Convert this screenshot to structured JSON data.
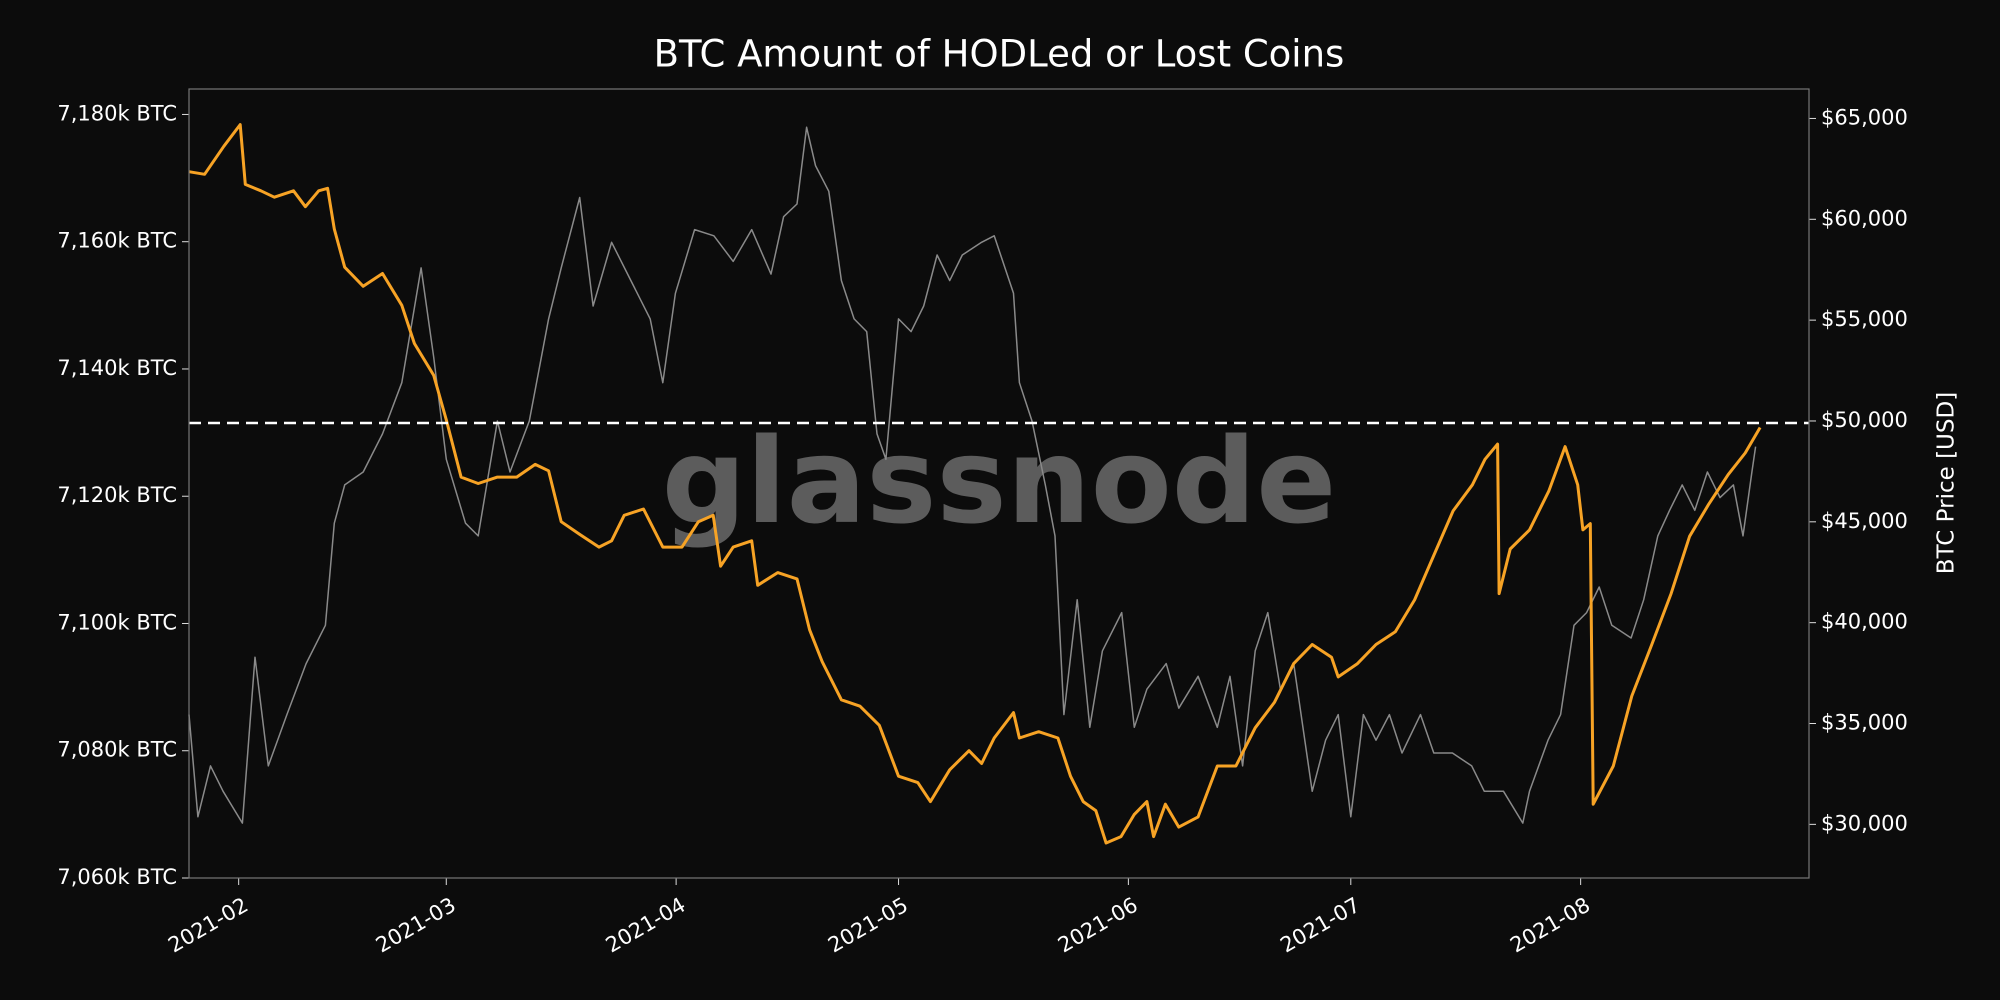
{
  "chart_data": {
    "type": "line",
    "title": "BTC Amount of HODLed or Lost Coins",
    "watermark": "glassnode",
    "y2label": "BTC Price [USD]",
    "xlim": [
      25.3,
      243.8
    ],
    "xticks": [
      {
        "value": 32,
        "label": "2021-02"
      },
      {
        "value": 60,
        "label": "2021-03"
      },
      {
        "value": 91,
        "label": "2021-04"
      },
      {
        "value": 121,
        "label": "2021-05"
      },
      {
        "value": 152,
        "label": "2021-06"
      },
      {
        "value": 182,
        "label": "2021-07"
      },
      {
        "value": 213,
        "label": "2021-08"
      }
    ],
    "ylim": [
      7060,
      7184
    ],
    "yticks": [
      {
        "value": 7060,
        "label": "7,060k BTC"
      },
      {
        "value": 7080,
        "label": "7,080k BTC"
      },
      {
        "value": 7100,
        "label": "7,100k BTC"
      },
      {
        "value": 7120,
        "label": "7,120k BTC"
      },
      {
        "value": 7140,
        "label": "7,140k BTC"
      },
      {
        "value": 7160,
        "label": "7,160k BTC"
      },
      {
        "value": 7180,
        "label": "7,180k BTC"
      }
    ],
    "y2lim": [
      27340,
      66460
    ],
    "y2ticks": [
      {
        "value": 30000,
        "label": "$30,000"
      },
      {
        "value": 35000,
        "label": "$35,000"
      },
      {
        "value": 40000,
        "label": "$40,000"
      },
      {
        "value": 45000,
        "label": "$45,000"
      },
      {
        "value": 50000,
        "label": "$50,000"
      },
      {
        "value": 55000,
        "label": "$55,000"
      },
      {
        "value": 60000,
        "label": "$60,000"
      },
      {
        "value": 65000,
        "label": "$65,000"
      }
    ],
    "reference_line": 7131.5,
    "series": [
      {
        "color": "#8a8a8a",
        "axis": "y2",
        "x": [
          25.3,
          26.5,
          28.2,
          29.9,
          32.5,
          34.2,
          36.0,
          38.5,
          41.1,
          43.7,
          44.9,
          46.3,
          48.8,
          51.4,
          54.0,
          56.6,
          58.3,
          60.0,
          62.6,
          64.3,
          66.9,
          68.6,
          71.2,
          73.8,
          75.5,
          78.0,
          79.8,
          82.3,
          84.9,
          87.5,
          89.2,
          90.9,
          93.5,
          96.1,
          98.7,
          101.2,
          103.8,
          105.5,
          107.3,
          108.6,
          109.8,
          111.6,
          113.3,
          115.0,
          116.7,
          118.1,
          119.3,
          121.0,
          122.7,
          124.4,
          126.2,
          127.9,
          129.6,
          132.2,
          133.9,
          136.5,
          137.3,
          139.0,
          140.8,
          142.1,
          143.3,
          145.1,
          146.8,
          148.5,
          151.1,
          152.8,
          154.5,
          157.1,
          158.8,
          161.4,
          164.0,
          165.7,
          167.4,
          169.1,
          170.8,
          172.5,
          174.3,
          176.8,
          178.6,
          180.3,
          182.0,
          183.7,
          185.4,
          187.2,
          188.9,
          191.4,
          193.2,
          195.7,
          198.3,
          200.0,
          202.6,
          205.2,
          206.1,
          208.6,
          210.3,
          212.1,
          213.8,
          215.5,
          217.2,
          219.8,
          221.5,
          223.4,
          225.0,
          226.7,
          228.4,
          230.1,
          231.8,
          233.6,
          234.9,
          236.1,
          236.6
        ],
        "values": [
          35440,
          30375,
          32900,
          31640,
          30060,
          38290,
          32900,
          35440,
          37970,
          39870,
          44930,
          46830,
          47470,
          49360,
          51900,
          57590,
          53160,
          48100,
          44930,
          44300,
          50000,
          47470,
          50000,
          55060,
          57590,
          61080,
          55700,
          58860,
          56960,
          55060,
          51900,
          56330,
          59490,
          59180,
          57910,
          59490,
          57280,
          60130,
          60760,
          64560,
          62660,
          61390,
          56960,
          55060,
          54430,
          49360,
          48100,
          55060,
          54430,
          55700,
          58230,
          56960,
          58230,
          58860,
          59180,
          56330,
          51900,
          50000,
          46830,
          44300,
          35440,
          41140,
          34810,
          38600,
          40500,
          34810,
          36700,
          37970,
          35760,
          37340,
          34810,
          37340,
          32900,
          38600,
          40500,
          36700,
          37970,
          31640,
          34170,
          35440,
          30375,
          35440,
          34170,
          35440,
          33540,
          35440,
          33540,
          33540,
          32900,
          31640,
          31640,
          30060,
          31640,
          34170,
          35440,
          39870,
          40500,
          41770,
          39870,
          39240,
          41140,
          44300,
          45570,
          46830,
          45570,
          47470,
          46200,
          46830,
          44300,
          47470,
          48730
        ]
      },
      {
        "color": "#f7a325",
        "axis": "y",
        "x": [
          25.3,
          27.4,
          30,
          32.2,
          32.9,
          35,
          36.8,
          39.4,
          41,
          42.8,
          44,
          44.9,
          46.3,
          48.8,
          51.4,
          54,
          55.7,
          58.3,
          60,
          62,
          64.3,
          66.9,
          69.5,
          72,
          73.8,
          75.5,
          78,
          80.6,
          82.3,
          84,
          86.6,
          89.2,
          91.8,
          94,
          96,
          97,
          98.7,
          101.2,
          102,
          104.7,
          107.3,
          109,
          110.7,
          113.3,
          115.8,
          118.4,
          121,
          123.6,
          125.3,
          127.9,
          130.5,
          132.2,
          133.9,
          136.5,
          137.3,
          139.9,
          142.5,
          144.2,
          145.9,
          147.6,
          149,
          151,
          152.8,
          154.5,
          155.4,
          157,
          158.8,
          161.4,
          164,
          166.5,
          169.1,
          171.7,
          174.3,
          176.8,
          179.4,
          180.3,
          182.9,
          185.4,
          188,
          190.6,
          193.2,
          195.8,
          198.4,
          200.1,
          201.8,
          202,
          203.5,
          206.1,
          208.7,
          210.9,
          212.6,
          213.3,
          214.3,
          214.7,
          217.4,
          219.9,
          222.6,
          225.2,
          227.7,
          230.3,
          232.9,
          235.2,
          237.2
        ],
        "values": [
          7171,
          7170.6,
          7175,
          7178.4,
          7169,
          7168,
          7167,
          7168,
          7165.5,
          7168,
          7168.4,
          7162,
          7156,
          7153,
          7155,
          7150,
          7144,
          7139,
          7132,
          7123,
          7122,
          7123,
          7123,
          7125,
          7124,
          7116,
          7114,
          7112,
          7113,
          7117,
          7118,
          7112,
          7112,
          7116,
          7117,
          7109,
          7112,
          7113,
          7106,
          7108,
          7107,
          7099,
          7094,
          7088,
          7087,
          7084,
          7076,
          7075,
          7072,
          7077,
          7080,
          7078,
          7082,
          7086,
          7082,
          7083,
          7082,
          7076,
          7072,
          7070.6,
          7065.5,
          7066.5,
          7070,
          7072,
          7066.5,
          7071.6,
          7068,
          7069.6,
          7077.6,
          7077.6,
          7083.6,
          7087.6,
          7093.7,
          7096.7,
          7094.7,
          7091.6,
          7093.7,
          7096.7,
          7098.7,
          7103.7,
          7110.7,
          7117.7,
          7121.8,
          7125.8,
          7128.2,
          7104.7,
          7111.7,
          7114.7,
          7120.8,
          7127.8,
          7121.8,
          7114.7,
          7115.7,
          7071.6,
          7077.6,
          7088.6,
          7096.7,
          7104.7,
          7113.7,
          7118.8,
          7123.4,
          7126.8,
          7130.8
        ]
      }
    ]
  }
}
